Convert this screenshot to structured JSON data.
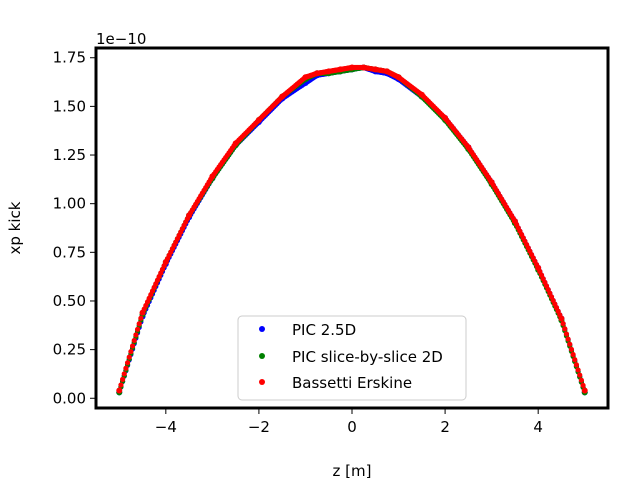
{
  "chart_data": {
    "type": "scatter",
    "title": "",
    "xlabel": "z [m]",
    "ylabel": "xp kick",
    "y_offset_label": "1e−10",
    "xlim": [
      -5.5,
      5.5
    ],
    "ylim": [
      -0.05,
      1.8
    ],
    "x_ticks": [
      -4,
      -2,
      0,
      2,
      4
    ],
    "x_tick_labels": [
      "−4",
      "−2",
      "0",
      "2",
      "4"
    ],
    "y_ticks": [
      0.0,
      0.25,
      0.5,
      0.75,
      1.0,
      1.25,
      1.5,
      1.75
    ],
    "y_tick_labels": [
      "0.00",
      "0.25",
      "0.50",
      "0.75",
      "1.00",
      "1.25",
      "1.50",
      "1.75"
    ],
    "grid": false,
    "legend_position": "lower center",
    "series": [
      {
        "name": "PIC 2.5D",
        "color": "#0000ff",
        "points": [
          [
            -5.0,
            0.03
          ],
          [
            -4.5,
            0.42
          ],
          [
            -4.0,
            0.69
          ],
          [
            -3.5,
            0.93
          ],
          [
            -3.0,
            1.13
          ],
          [
            -2.5,
            1.3
          ],
          [
            -2.0,
            1.42
          ],
          [
            -1.5,
            1.54
          ],
          [
            -1.0,
            1.62
          ],
          [
            -0.75,
            1.66
          ],
          [
            -0.5,
            1.67
          ],
          [
            -0.25,
            1.68
          ],
          [
            0.0,
            1.69
          ],
          [
            0.25,
            1.7
          ],
          [
            0.5,
            1.68
          ],
          [
            0.75,
            1.67
          ],
          [
            1.0,
            1.64
          ],
          [
            1.5,
            1.55
          ],
          [
            2.0,
            1.44
          ],
          [
            2.5,
            1.29
          ],
          [
            3.0,
            1.11
          ],
          [
            3.5,
            0.91
          ],
          [
            4.0,
            0.67
          ],
          [
            4.5,
            0.41
          ],
          [
            5.0,
            0.03
          ]
        ]
      },
      {
        "name": "PIC slice-by-slice 2D",
        "color": "#008000",
        "points": [
          [
            -5.0,
            0.03
          ],
          [
            -4.5,
            0.43
          ],
          [
            -4.0,
            0.7
          ],
          [
            -3.5,
            0.94
          ],
          [
            -3.0,
            1.13
          ],
          [
            -2.5,
            1.3
          ],
          [
            -2.0,
            1.43
          ],
          [
            -1.5,
            1.55
          ],
          [
            -1.0,
            1.64
          ],
          [
            -0.75,
            1.67
          ],
          [
            -0.5,
            1.67
          ],
          [
            -0.25,
            1.68
          ],
          [
            0.0,
            1.69
          ],
          [
            0.25,
            1.7
          ],
          [
            0.5,
            1.69
          ],
          [
            0.75,
            1.68
          ],
          [
            1.0,
            1.65
          ],
          [
            1.5,
            1.55
          ],
          [
            2.0,
            1.43
          ],
          [
            2.5,
            1.28
          ],
          [
            3.0,
            1.1
          ],
          [
            3.5,
            0.9
          ],
          [
            4.0,
            0.66
          ],
          [
            4.5,
            0.4
          ],
          [
            5.0,
            0.03
          ]
        ]
      },
      {
        "name": "Bassetti Erskine",
        "color": "#ff0000",
        "points": [
          [
            -5.0,
            0.04
          ],
          [
            -4.5,
            0.44
          ],
          [
            -4.0,
            0.7
          ],
          [
            -3.5,
            0.94
          ],
          [
            -3.0,
            1.14
          ],
          [
            -2.5,
            1.31
          ],
          [
            -2.0,
            1.43
          ],
          [
            -1.5,
            1.55
          ],
          [
            -1.0,
            1.65
          ],
          [
            -0.75,
            1.67
          ],
          [
            -0.5,
            1.68
          ],
          [
            -0.25,
            1.69
          ],
          [
            0.0,
            1.7
          ],
          [
            0.25,
            1.7
          ],
          [
            0.5,
            1.69
          ],
          [
            0.75,
            1.68
          ],
          [
            1.0,
            1.65
          ],
          [
            1.5,
            1.56
          ],
          [
            2.0,
            1.44
          ],
          [
            2.5,
            1.29
          ],
          [
            3.0,
            1.11
          ],
          [
            3.5,
            0.91
          ],
          [
            4.0,
            0.67
          ],
          [
            4.5,
            0.41
          ],
          [
            5.0,
            0.04
          ]
        ]
      }
    ]
  }
}
